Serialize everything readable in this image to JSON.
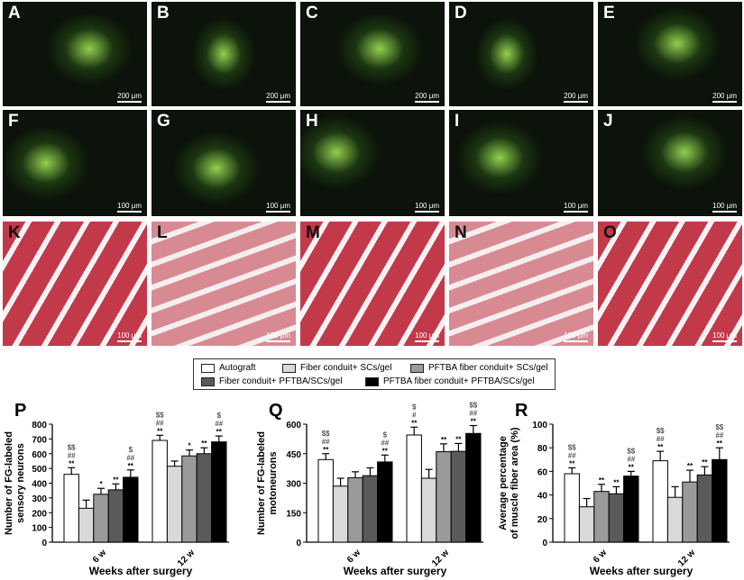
{
  "panels": {
    "row1": {
      "labels": [
        "A",
        "B",
        "C",
        "D",
        "E"
      ],
      "scale": "200 μm"
    },
    "row2": {
      "labels": [
        "F",
        "G",
        "H",
        "I",
        "J"
      ],
      "scale": "100 μm"
    },
    "row3": {
      "labels": [
        "K",
        "L",
        "M",
        "N",
        "O"
      ],
      "scale": "100 μm"
    }
  },
  "legend": [
    {
      "label": "Autograft",
      "color": "#ffffff"
    },
    {
      "label": "Fiber conduit+ SCs/gel",
      "color": "#d9d9d9"
    },
    {
      "label": "PFTBA fiber conduit+ SCs/gel",
      "color": "#9a9a9a"
    },
    {
      "label": "Fiber conduit+ PFTBA/SCs/gel",
      "color": "#5a5a5a"
    },
    {
      "label": "PFTBA fiber conduit+ PFTBA/SCs/gel",
      "color": "#000000"
    }
  ],
  "chart_data": [
    {
      "type": "bar",
      "panel": "P",
      "ylabel": [
        "Number of FG-labeled",
        "sensory neurons"
      ],
      "xlabel": "Weeks after surgery",
      "categories": [
        "6 w",
        "12 w"
      ],
      "ylim": [
        0,
        800
      ],
      "yticks": [
        0,
        100,
        200,
        300,
        400,
        500,
        600,
        700,
        800
      ],
      "values": [
        [
          460,
          230,
          325,
          355,
          440
        ],
        [
          690,
          515,
          585,
          600,
          680
        ]
      ],
      "errors": [
        [
          45,
          55,
          40,
          40,
          50
        ],
        [
          35,
          35,
          40,
          40,
          40
        ]
      ],
      "annotations": [
        [
          [
            "$$",
            "##",
            "**"
          ],
          [],
          [
            "*"
          ],
          [
            "**"
          ],
          [
            "$",
            "##",
            "**"
          ]
        ],
        [
          [
            "$$",
            "##",
            "**"
          ],
          [],
          [
            "*"
          ],
          [
            "**"
          ],
          [
            "$",
            "##",
            "**"
          ]
        ]
      ]
    },
    {
      "type": "bar",
      "panel": "Q",
      "ylabel": [
        "Number of FG-labeled",
        "motoneurons"
      ],
      "xlabel": "Weeks after surgery",
      "categories": [
        "6 w",
        "12 w"
      ],
      "ylim": [
        0,
        600
      ],
      "yticks": [
        0,
        150,
        300,
        450,
        600
      ],
      "values": [
        [
          420,
          285,
          328,
          338,
          408
        ],
        [
          545,
          325,
          460,
          462,
          553
        ]
      ],
      "errors": [
        [
          30,
          40,
          30,
          40,
          35
        ],
        [
          40,
          45,
          40,
          40,
          40
        ]
      ],
      "annotations": [
        [
          [
            "$$",
            "##",
            "**"
          ],
          [],
          [],
          [],
          [
            "$",
            "##",
            "**"
          ]
        ],
        [
          [
            "$",
            "#",
            "**"
          ],
          [],
          [
            "**"
          ],
          [
            "**"
          ],
          [
            "$$",
            "##",
            "**"
          ]
        ]
      ]
    },
    {
      "type": "bar",
      "panel": "R",
      "ylabel": [
        "Average percentage",
        "of muscle fiber area (%)"
      ],
      "xlabel": "Weeks after surgery",
      "categories": [
        "6 w",
        "12 w"
      ],
      "ylim": [
        0,
        100
      ],
      "yticks": [
        0,
        20,
        40,
        60,
        80,
        100
      ],
      "values": [
        [
          58,
          30,
          43,
          41,
          56
        ],
        [
          69,
          38,
          51,
          57,
          70
        ]
      ],
      "errors": [
        [
          5,
          7,
          6,
          6,
          4
        ],
        [
          8,
          9,
          10,
          7,
          10
        ]
      ],
      "annotations": [
        [
          [
            "$$",
            "##",
            "**"
          ],
          [],
          [
            "**"
          ],
          [
            "**"
          ],
          [
            "$$",
            "##",
            "**"
          ]
        ],
        [
          [
            "$$",
            "##",
            "**"
          ],
          [],
          [
            "**"
          ],
          [
            "**"
          ],
          [
            "$$",
            "##",
            "**"
          ]
        ]
      ]
    }
  ]
}
